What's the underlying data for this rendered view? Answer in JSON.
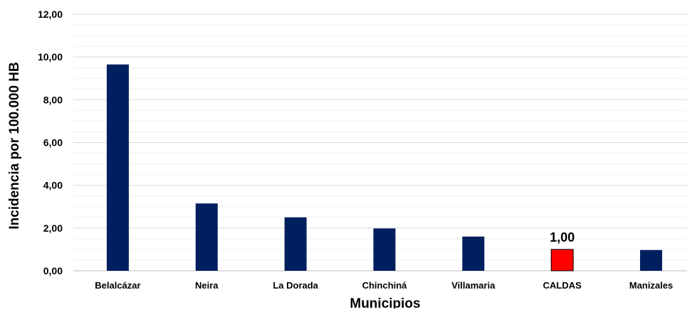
{
  "chart_data": {
    "type": "bar",
    "title": "",
    "xlabel": "Municipios",
    "ylabel": "Incidencia por 100.000 HB",
    "ylim": [
      0,
      12
    ],
    "yticks": [
      "0,00",
      "2,00",
      "4,00",
      "6,00",
      "8,00",
      "10,00",
      "12,00"
    ],
    "categories": [
      "Belalcázar",
      "Neira",
      "La Dorada",
      "Chinchiná",
      "Villamaria",
      "CALDAS",
      "Manizales"
    ],
    "values": [
      9.65,
      3.15,
      2.5,
      1.98,
      1.6,
      1.0,
      0.97
    ],
    "colors": [
      "#001f5f",
      "#001f5f",
      "#001f5f",
      "#001f5f",
      "#001f5f",
      "#ff0000",
      "#001f5f"
    ],
    "data_labels": [
      {
        "category": "CALDAS",
        "text": "1,00"
      }
    ],
    "grid": true,
    "legend": "none"
  }
}
